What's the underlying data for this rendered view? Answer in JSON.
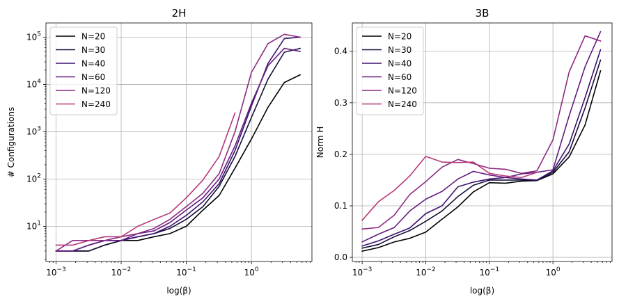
{
  "chart_data": [
    {
      "type": "line",
      "title": "2H",
      "xlabel": "log(β)",
      "ylabel": "# Configurations",
      "xscale": "log",
      "yscale": "log",
      "xlim": [
        0.0007,
        8.5
      ],
      "ylim": [
        1.8,
        200000
      ],
      "grid": true,
      "legend_position": "upper-left",
      "x_ticks": [
        {
          "value": 0.001,
          "base": "10",
          "exp": "−3"
        },
        {
          "value": 0.01,
          "base": "10",
          "exp": "−2"
        },
        {
          "value": 0.1,
          "base": "10",
          "exp": "−1"
        },
        {
          "value": 1,
          "base": "10",
          "exp": "0"
        }
      ],
      "y_ticks": [
        {
          "value": 10,
          "base": "10",
          "exp": "1"
        },
        {
          "value": 100,
          "base": "10",
          "exp": "2"
        },
        {
          "value": 1000,
          "base": "10",
          "exp": "3"
        },
        {
          "value": 10000,
          "base": "10",
          "exp": "4"
        },
        {
          "value": 100000,
          "base": "10",
          "exp": "5"
        }
      ],
      "series": [
        {
          "name": "N=20",
          "color": "#000004",
          "x": [
            0.001,
            0.0018,
            0.0032,
            0.0056,
            0.01,
            0.018,
            0.032,
            0.056,
            0.1,
            0.18,
            0.32,
            0.56,
            1.0,
            1.8,
            3.2,
            5.6
          ],
          "y": [
            3,
            3,
            3,
            4,
            5,
            5,
            6,
            7,
            10,
            22,
            45,
            170,
            700,
            3300,
            11000,
            16000
          ]
        },
        {
          "name": "N=30",
          "color": "#140e36",
          "x": [
            0.001,
            0.0018,
            0.0032,
            0.0056,
            0.01,
            0.018,
            0.032,
            0.056,
            0.1,
            0.18,
            0.32,
            0.56,
            1.0,
            1.8,
            3.2,
            5.6
          ],
          "y": [
            3,
            3,
            3,
            4,
            5,
            6,
            7,
            9,
            14,
            26,
            70,
            300,
            2000,
            13000,
            48000,
            58000
          ]
        },
        {
          "name": "N=40",
          "color": "#3b0f70",
          "x": [
            0.001,
            0.0018,
            0.0032,
            0.0056,
            0.01,
            0.018,
            0.032,
            0.056,
            0.1,
            0.18,
            0.32,
            0.56,
            1.0,
            1.8,
            3.2,
            5.6
          ],
          "y": [
            3,
            3,
            4,
            5,
            5,
            6,
            7,
            10,
            17,
            33,
            80,
            400,
            3500,
            28000,
            93000,
            100000
          ]
        },
        {
          "name": "N=60",
          "color": "#641a80",
          "x": [
            0.001,
            0.0018,
            0.0032,
            0.0056,
            0.01,
            0.018,
            0.032,
            0.056,
            0.1,
            0.18,
            0.32,
            0.56,
            1.0,
            1.8,
            3.2,
            5.6
          ],
          "y": [
            3,
            3,
            4,
            5,
            5,
            7,
            8,
            12,
            22,
            40,
            100,
            500,
            4000,
            25000,
            58000,
            50000
          ]
        },
        {
          "name": "N=120",
          "color": "#8c2981",
          "x": [
            0.001,
            0.0018,
            0.0032,
            0.0056,
            0.01,
            0.018,
            0.032,
            0.056,
            0.1,
            0.18,
            0.32,
            0.56,
            1.0,
            1.8,
            3.2,
            5.6
          ],
          "y": [
            3,
            5,
            5,
            5,
            6,
            7,
            9,
            14,
            26,
            50,
            130,
            1000,
            18000,
            73000,
            115000,
            100000
          ]
        },
        {
          "name": "N=240",
          "color": "#b73779",
          "x": [
            0.001,
            0.0018,
            0.0032,
            0.0056,
            0.01,
            0.018,
            0.032,
            0.056,
            0.1,
            0.18,
            0.32,
            0.56
          ],
          "y": [
            4,
            4,
            5,
            6,
            6,
            10,
            14,
            19,
            40,
            95,
            300,
            2500
          ]
        }
      ]
    },
    {
      "type": "line",
      "title": "3B",
      "xlabel": "log(β)",
      "ylabel": "Norm H",
      "xscale": "log",
      "yscale": "linear",
      "xlim": [
        0.0007,
        8.5
      ],
      "ylim": [
        -0.008,
        0.455
      ],
      "grid": true,
      "legend_position": "upper-left",
      "x_ticks": [
        {
          "value": 0.001,
          "base": "10",
          "exp": "−3"
        },
        {
          "value": 0.01,
          "base": "10",
          "exp": "−2"
        },
        {
          "value": 0.1,
          "base": "10",
          "exp": "−1"
        },
        {
          "value": 1,
          "base": "10",
          "exp": "0"
        }
      ],
      "y_ticks": [
        {
          "value": 0.0,
          "label": "0.0"
        },
        {
          "value": 0.1,
          "label": "0.1"
        },
        {
          "value": 0.2,
          "label": "0.2"
        },
        {
          "value": 0.3,
          "label": "0.3"
        },
        {
          "value": 0.4,
          "label": "0.4"
        }
      ],
      "series": [
        {
          "name": "N=20",
          "color": "#000004",
          "x": [
            0.001,
            0.0018,
            0.0032,
            0.0056,
            0.01,
            0.018,
            0.032,
            0.056,
            0.1,
            0.18,
            0.32,
            0.56,
            1.0,
            1.8,
            3.2,
            5.6
          ],
          "y": [
            0.012,
            0.019,
            0.03,
            0.037,
            0.049,
            0.074,
            0.098,
            0.127,
            0.145,
            0.144,
            0.148,
            0.149,
            0.162,
            0.195,
            0.257,
            0.362
          ]
        },
        {
          "name": "N=30",
          "color": "#140e36",
          "x": [
            0.001,
            0.0018,
            0.0032,
            0.0056,
            0.01,
            0.018,
            0.032,
            0.056,
            0.1,
            0.18,
            0.32,
            0.56,
            1.0,
            1.8,
            3.2,
            5.6
          ],
          "y": [
            0.018,
            0.025,
            0.04,
            0.052,
            0.07,
            0.09,
            0.118,
            0.14,
            0.15,
            0.15,
            0.15,
            0.15,
            0.165,
            0.205,
            0.29,
            0.383
          ]
        },
        {
          "name": "N=40",
          "color": "#3b0f70",
          "x": [
            0.001,
            0.0018,
            0.0032,
            0.0056,
            0.01,
            0.018,
            0.032,
            0.056,
            0.1,
            0.18,
            0.32,
            0.56,
            1.0,
            1.8,
            3.2,
            5.6
          ],
          "y": [
            0.022,
            0.032,
            0.045,
            0.057,
            0.085,
            0.1,
            0.137,
            0.146,
            0.152,
            0.155,
            0.152,
            0.15,
            0.168,
            0.22,
            0.31,
            0.403
          ]
        },
        {
          "name": "N=60",
          "color": "#641a80",
          "x": [
            0.001,
            0.0018,
            0.0032,
            0.0056,
            0.01,
            0.018,
            0.032,
            0.056,
            0.1,
            0.18,
            0.32,
            0.56,
            1.0,
            1.8,
            3.2,
            5.6
          ],
          "y": [
            0.03,
            0.045,
            0.058,
            0.09,
            0.113,
            0.128,
            0.152,
            0.167,
            0.16,
            0.155,
            0.162,
            0.165,
            0.17,
            0.275,
            0.37,
            0.438
          ]
        },
        {
          "name": "N=120",
          "color": "#8c2981",
          "x": [
            0.001,
            0.0018,
            0.0032,
            0.0056,
            0.01,
            0.018,
            0.032,
            0.056,
            0.1,
            0.18,
            0.32,
            0.56,
            1.0,
            1.8,
            3.2,
            5.6
          ],
          "y": [
            0.055,
            0.058,
            0.082,
            0.122,
            0.147,
            0.175,
            0.19,
            0.182,
            0.173,
            0.171,
            0.163,
            0.168,
            0.228,
            0.36,
            0.43,
            0.42
          ]
        },
        {
          "name": "N=240",
          "color": "#b73779",
          "x": [
            0.001,
            0.0018,
            0.0032,
            0.0056,
            0.01,
            0.018,
            0.032,
            0.056,
            0.1,
            0.18,
            0.32,
            0.56
          ],
          "y": [
            0.072,
            0.108,
            0.13,
            0.158,
            0.196,
            0.185,
            0.184,
            0.185,
            0.163,
            0.158,
            0.155,
            0.165
          ]
        }
      ]
    }
  ]
}
